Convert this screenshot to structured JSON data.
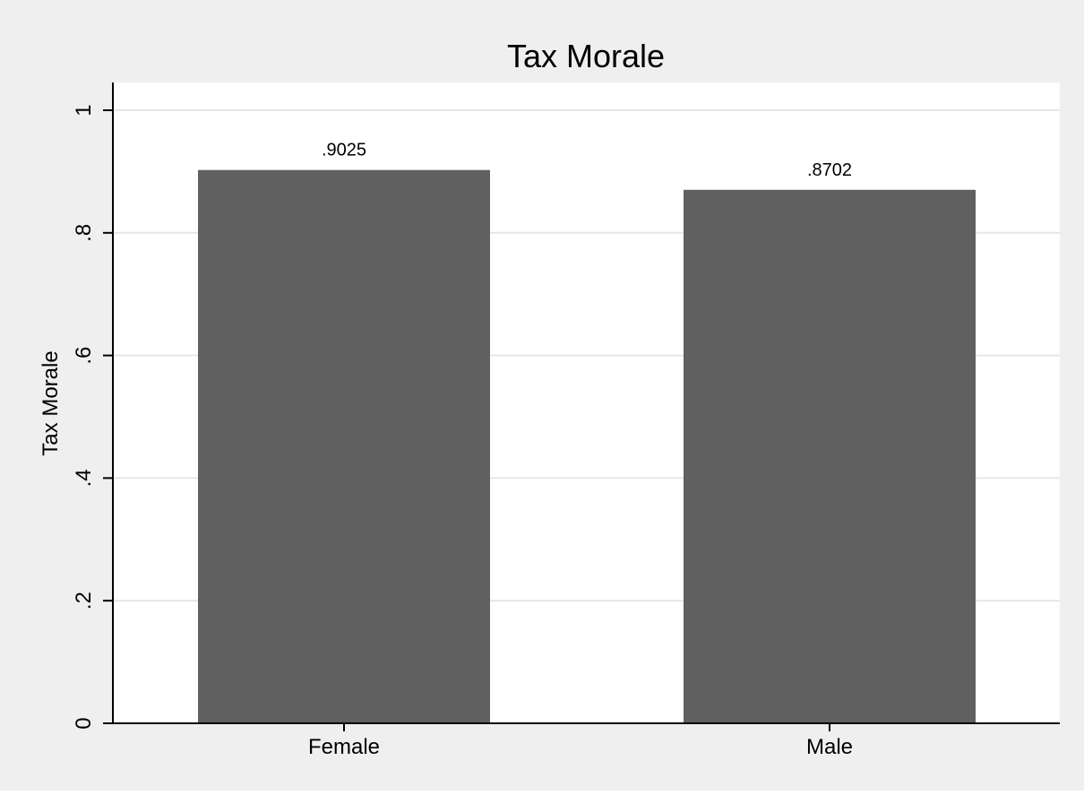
{
  "chart_data": {
    "type": "bar",
    "title": "Tax Morale",
    "xlabel": "",
    "ylabel": "Tax Morale",
    "categories": [
      "Female",
      "Male"
    ],
    "values": [
      0.9025,
      0.8702
    ],
    "value_labels": [
      ".9025",
      ".8702"
    ],
    "ylim": [
      0,
      1.05
    ],
    "yticks": [
      0,
      0.2,
      0.4,
      0.6,
      0.8,
      1
    ],
    "ytick_labels": [
      "0",
      ".2",
      ".4",
      ".6",
      ".8",
      "1"
    ],
    "grid": true,
    "legend": "none"
  },
  "colors": {
    "outer_background": "#efefef",
    "plot_background": "#ffffff",
    "bar": "#606060",
    "grid": "#e6e6e6",
    "axis": "#000000"
  }
}
